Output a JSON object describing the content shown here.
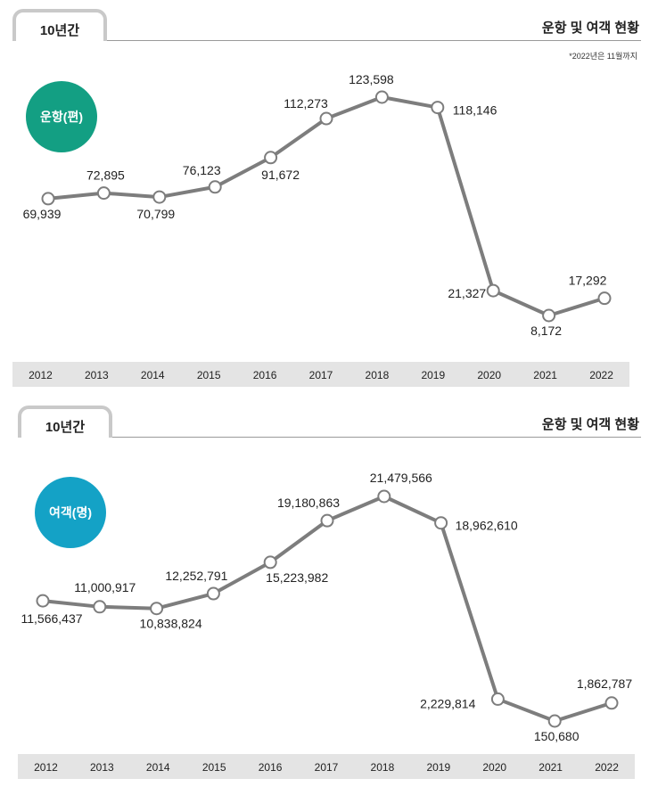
{
  "colors": {
    "line": "#7d7d7d",
    "tab_border": "#c9c9c9",
    "year_bar": "#e4e4e4"
  },
  "panels": [
    {
      "tab_label": "10년간",
      "section_title": "운항 및 여객 현황",
      "note": "*2022년은 11월까지",
      "badge": {
        "label": "운항(편)",
        "color": "#139f83"
      }
    },
    {
      "tab_label": "10년간",
      "section_title": "운항 및 여객 현황",
      "note": "",
      "badge": {
        "label": "여객(명)",
        "color": "#14a2c6"
      }
    }
  ],
  "chart_data": [
    {
      "type": "line",
      "title": "운항(편)",
      "x": [
        "2012",
        "2013",
        "2014",
        "2015",
        "2016",
        "2017",
        "2018",
        "2019",
        "2020",
        "2021",
        "2022"
      ],
      "values": [
        69939,
        72895,
        70799,
        76123,
        91672,
        112273,
        123598,
        118146,
        21327,
        8172,
        17292
      ],
      "labels": [
        "69,939",
        "72,895",
        "70,799",
        "76,123",
        "91,672",
        "112,273",
        "123,598",
        "118,146",
        "21,327",
        "8,172",
        "17,292"
      ],
      "grid": false,
      "legend": "none"
    },
    {
      "type": "line",
      "title": "여객(명)",
      "x": [
        "2012",
        "2013",
        "2014",
        "2015",
        "2016",
        "2017",
        "2018",
        "2019",
        "2020",
        "2021",
        "2022"
      ],
      "values": [
        11566437,
        11000917,
        10838824,
        12252791,
        15223982,
        19180863,
        21479566,
        18962610,
        2229814,
        150680,
        1862787
      ],
      "labels": [
        "11,566,437",
        "11,000,917",
        "10,838,824",
        "12,252,791",
        "15,223,982",
        "19,180,863",
        "21,479,566",
        "18,962,610",
        "2,229,814",
        "150,680",
        "1,862,787"
      ],
      "grid": false,
      "legend": "none"
    }
  ]
}
